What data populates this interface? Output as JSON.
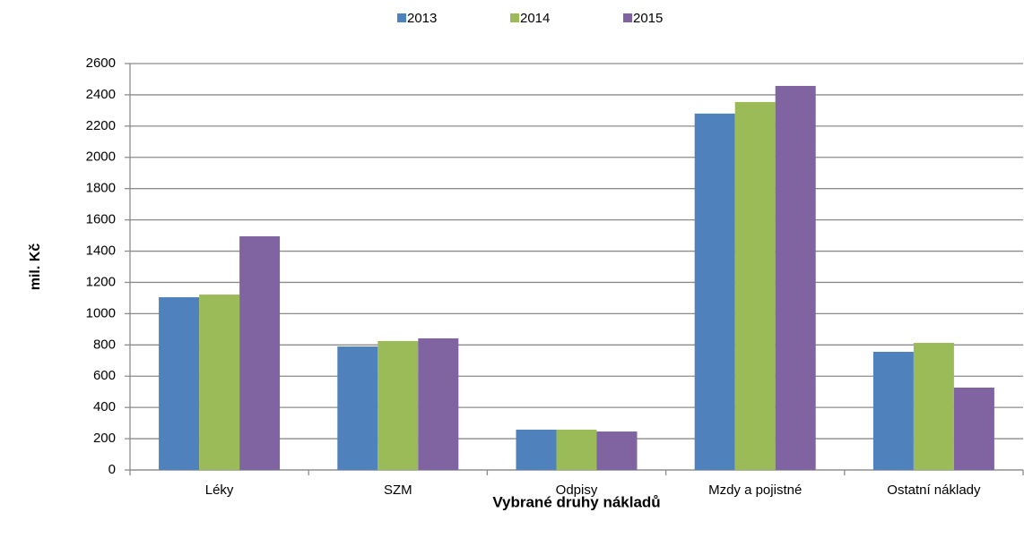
{
  "chart_data": {
    "type": "bar",
    "categories": [
      "Léky",
      "SZM",
      "Odpisy",
      "Mzdy a pojistné",
      "Ostatní náklady"
    ],
    "series": [
      {
        "name": "2013",
        "color": "#4f81bd",
        "values": [
          1105,
          790,
          258,
          2280,
          756
        ]
      },
      {
        "name": "2014",
        "color": "#9bbb59",
        "values": [
          1122,
          825,
          258,
          2354,
          813
        ]
      },
      {
        "name": "2015",
        "color": "#8064a2",
        "values": [
          1495,
          842,
          246,
          2457,
          527
        ]
      }
    ],
    "ylim": [
      0,
      2600
    ],
    "yticks": [
      0,
      200,
      400,
      600,
      800,
      1000,
      1200,
      1400,
      1600,
      1800,
      2000,
      2200,
      2400,
      2600
    ],
    "grid": true,
    "legend": "top",
    "ylabel": "mil. Kč",
    "xlabel": "Vybrané druhy nákladů"
  }
}
